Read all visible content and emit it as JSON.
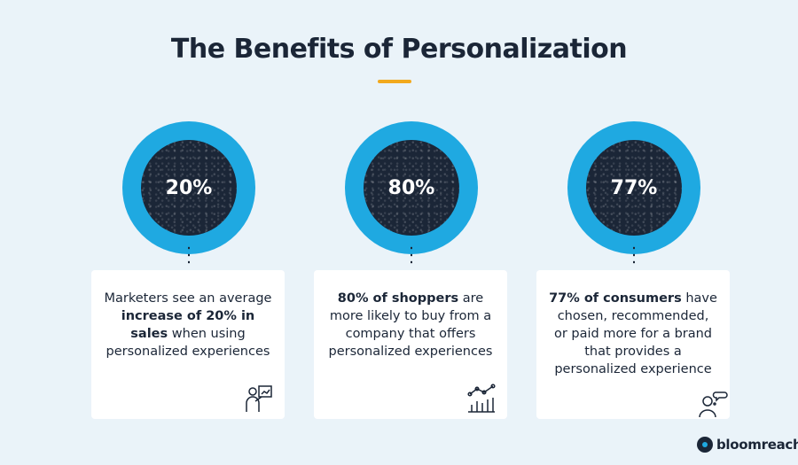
{
  "title": "The Benefits of Personalization",
  "colors": {
    "accent_ring": "#1fa9e1",
    "dark": "#1b2637",
    "title_bar": "#f2a91e",
    "background": "#eaf3f9"
  },
  "stats": [
    {
      "value": "20%",
      "text_parts": [
        {
          "text": "Marketers see an average ",
          "bold": false
        },
        {
          "text": "increase of 20% in sales",
          "bold": true
        },
        {
          "text": " when using personalized experiences",
          "bold": false
        }
      ],
      "icon": "presentation-icon"
    },
    {
      "value": "80%",
      "text_parts": [
        {
          "text": "80% of shoppers",
          "bold": true
        },
        {
          "text": " are more likely to buy from a company that offers personalized experiences",
          "bold": false
        }
      ],
      "icon": "growth-chart-icon"
    },
    {
      "value": "77%",
      "text_parts": [
        {
          "text": "77% of consumers",
          "bold": true
        },
        {
          "text": " have chosen, recommended, or paid more for a brand that provides a personalized experience",
          "bold": false
        }
      ],
      "icon": "thinking-person-icon"
    }
  ],
  "logo": {
    "text": "bloomreach"
  }
}
